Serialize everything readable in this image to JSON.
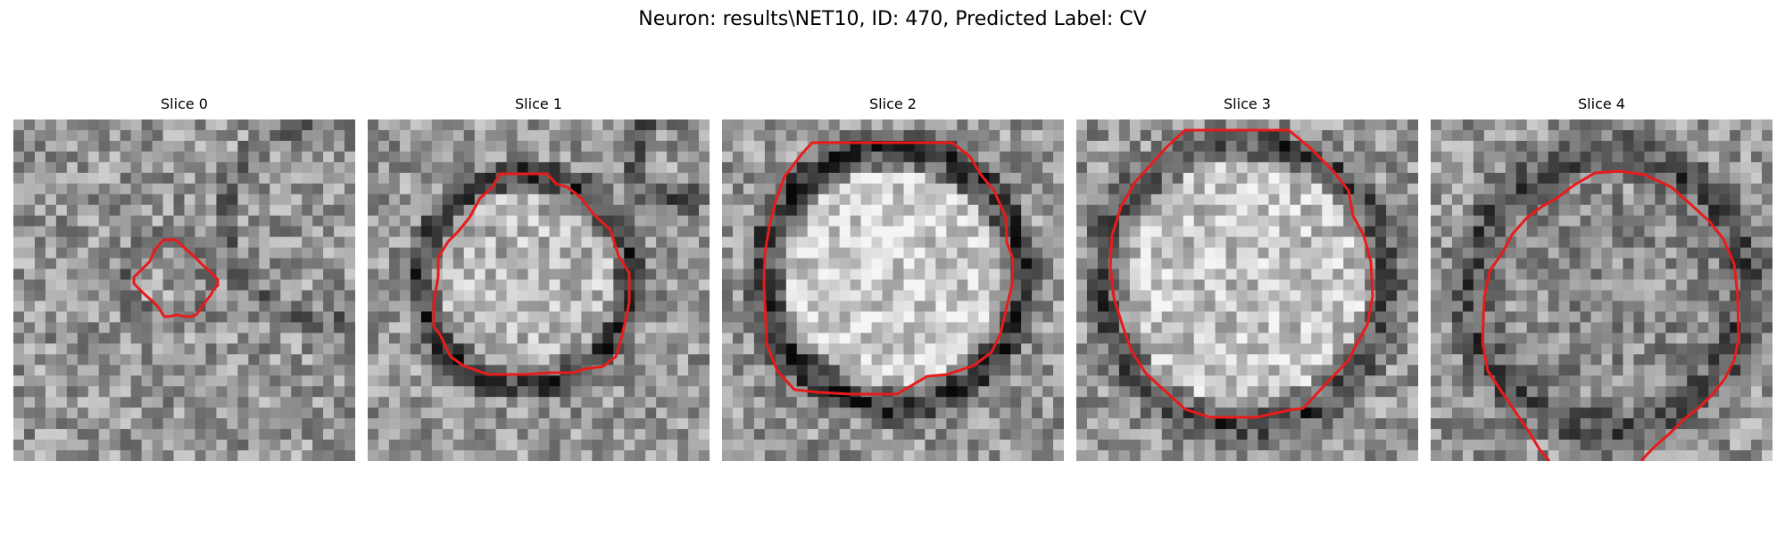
{
  "figure": {
    "title": "Neuron: results\\NET10, ID: 470, Predicted Label: CV"
  },
  "panels": [
    {
      "title": "Slice 0"
    },
    {
      "title": "Slice 1"
    },
    {
      "title": "Slice 2"
    },
    {
      "title": "Slice 3"
    },
    {
      "title": "Slice 4"
    }
  ],
  "colors": {
    "contour": "#e81b1b",
    "background": "#ffffff"
  }
}
